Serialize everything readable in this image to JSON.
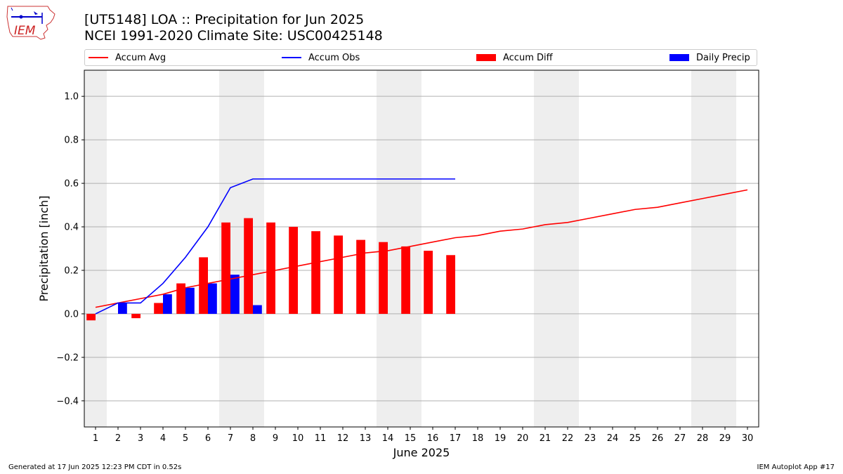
{
  "header": {
    "title_line1": "[UT5148] LOA :: Precipitation for Jun 2025",
    "title_line2": "NCEI 1991-2020 Climate Site: USC00425148"
  },
  "logo": {
    "text": "IEM",
    "icon": "iem-iowa-logo-icon"
  },
  "footer": {
    "generated": "Generated at 17 Jun 2025 12:23 PM CDT in 0.52s",
    "app": "IEM Autoplot App #17"
  },
  "colors": {
    "avg": "#ff0000",
    "obs": "#0000ff",
    "diff": "#ff0000",
    "daily": "#0000ff",
    "weekend": "#eeeeee",
    "grid": "#b0b0b0"
  },
  "chart_data": {
    "type": "bar",
    "xlabel": "June 2025",
    "ylabel": "Precipitation [inch]",
    "xlim": [
      0.5,
      30.5
    ],
    "ylim": [
      -0.52,
      1.12
    ],
    "yticks": [
      -0.4,
      -0.2,
      0.0,
      0.2,
      0.4,
      0.6,
      0.8,
      1.0
    ],
    "ytick_labels": [
      "−0.4",
      "−0.2",
      "0.0",
      "0.2",
      "0.4",
      "0.6",
      "0.8",
      "1.0"
    ],
    "xticks": [
      1,
      2,
      3,
      4,
      5,
      6,
      7,
      8,
      9,
      10,
      11,
      12,
      13,
      14,
      15,
      16,
      17,
      18,
      19,
      20,
      21,
      22,
      23,
      24,
      25,
      26,
      27,
      28,
      29,
      30
    ],
    "grid": "horizontal",
    "legend_position": "top",
    "weekend_spans": [
      [
        0.5,
        1.5
      ],
      [
        6.5,
        8.5
      ],
      [
        13.5,
        15.5
      ],
      [
        20.5,
        22.5
      ],
      [
        27.5,
        29.5
      ]
    ],
    "series": [
      {
        "name": "Accum Avg",
        "kind": "line",
        "color": "#ff0000",
        "x": [
          1,
          2,
          3,
          4,
          5,
          6,
          7,
          8,
          9,
          10,
          11,
          12,
          13,
          14,
          15,
          16,
          17,
          18,
          19,
          20,
          21,
          22,
          23,
          24,
          25,
          26,
          27,
          28,
          29,
          30
        ],
        "values": [
          0.03,
          0.05,
          0.07,
          0.09,
          0.12,
          0.14,
          0.16,
          0.18,
          0.2,
          0.22,
          0.24,
          0.26,
          0.28,
          0.29,
          0.31,
          0.33,
          0.35,
          0.36,
          0.38,
          0.39,
          0.41,
          0.42,
          0.44,
          0.46,
          0.48,
          0.49,
          0.51,
          0.53,
          0.55,
          0.57
        ]
      },
      {
        "name": "Accum Obs",
        "kind": "line",
        "color": "#0000ff",
        "x": [
          1,
          2,
          3,
          4,
          5,
          6,
          7,
          8,
          9,
          10,
          11,
          12,
          13,
          14,
          15,
          16,
          17
        ],
        "values": [
          0.0,
          0.05,
          0.05,
          0.14,
          0.26,
          0.4,
          0.58,
          0.62,
          0.62,
          0.62,
          0.62,
          0.62,
          0.62,
          0.62,
          0.62,
          0.62,
          0.62
        ]
      },
      {
        "name": "Accum Diff",
        "kind": "bar",
        "color": "#ff0000",
        "x": [
          1,
          2,
          3,
          4,
          5,
          6,
          7,
          8,
          9,
          10,
          11,
          12,
          13,
          14,
          15,
          16,
          17
        ],
        "values": [
          -0.03,
          0.0,
          -0.02,
          0.05,
          0.14,
          0.26,
          0.42,
          0.44,
          0.42,
          0.4,
          0.38,
          0.36,
          0.34,
          0.33,
          0.31,
          0.29,
          0.27
        ]
      },
      {
        "name": "Daily Precip",
        "kind": "bar",
        "color": "#0000ff",
        "x": [
          2,
          4,
          5,
          6,
          7,
          8
        ],
        "values": [
          0.05,
          0.09,
          0.12,
          0.14,
          0.18,
          0.04
        ]
      }
    ]
  }
}
